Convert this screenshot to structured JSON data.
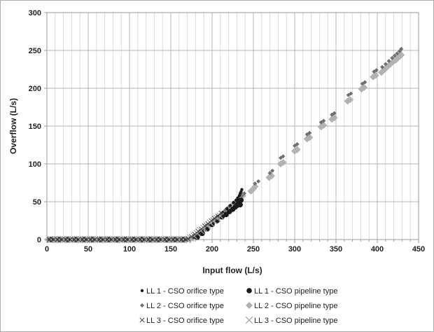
{
  "chart_data": {
    "type": "scatter",
    "title": "",
    "xlabel": "Input flow (L/s)",
    "ylabel": "Overflow (L/s)",
    "xlim": [
      0,
      450
    ],
    "ylim": [
      0,
      300
    ],
    "x_major_step": 50,
    "x_minor_step": 10,
    "y_major_step": 50,
    "x_ticks": [
      0,
      50,
      100,
      150,
      200,
      250,
      300,
      350,
      400,
      450
    ],
    "y_ticks": [
      0,
      50,
      100,
      150,
      200,
      250,
      300
    ],
    "grid": "on",
    "legend_position": "bottom-two-columns",
    "colors": {
      "black_marker": "#1a1a1a",
      "dark_gray_diamond": "#6f6f6f",
      "light_gray_diamond": "#b2b2b2",
      "dark_x": "#3c3c3c",
      "light_x": "#a3a3a3",
      "major_grid": "#b4b4b4",
      "minor_grid": "#dcdcdc",
      "axis_line": "#9a9a9a",
      "text": "#1f1f1f"
    },
    "series": [
      {
        "key": "ll2_pipeline",
        "label": "LL 2 - CSO pipeline type",
        "marker": "diamond",
        "size": 5,
        "color": "#b2b2b2",
        "stroke_width": 0,
        "zeros_x": [
          1,
          4,
          7,
          10,
          13,
          16,
          19,
          22,
          25,
          28,
          31,
          34,
          37,
          40,
          43,
          46,
          49,
          52,
          55,
          58,
          61,
          64,
          67,
          70,
          73,
          76,
          79,
          82,
          85,
          88,
          91,
          94,
          97,
          100,
          103,
          106,
          109,
          112,
          115,
          118,
          121,
          124,
          127,
          130,
          133,
          136,
          139,
          142,
          145,
          148,
          151,
          154,
          157,
          160,
          163,
          166,
          169
        ],
        "points": [
          [
            174,
            1
          ],
          [
            178,
            3
          ],
          [
            182,
            6
          ],
          [
            186,
            9
          ],
          [
            190,
            13
          ],
          [
            194,
            16
          ],
          [
            198,
            20
          ],
          [
            202,
            24
          ],
          [
            206,
            28
          ],
          [
            210,
            31
          ],
          [
            214,
            35
          ],
          [
            218,
            39
          ],
          [
            222,
            43
          ],
          [
            226,
            47
          ],
          [
            230,
            51
          ],
          [
            234,
            55
          ],
          [
            237,
            58
          ],
          [
            247,
            64
          ],
          [
            250,
            67
          ],
          [
            252,
            70
          ],
          [
            269,
            82
          ],
          [
            272,
            84
          ],
          [
            283,
            100
          ],
          [
            286,
            102
          ],
          [
            300,
            117
          ],
          [
            303,
            119
          ],
          [
            315,
            133
          ],
          [
            318,
            135
          ],
          [
            332,
            149
          ],
          [
            335,
            151
          ],
          [
            345,
            159
          ],
          [
            348,
            161
          ],
          [
            364,
            183
          ],
          [
            367,
            185
          ],
          [
            381,
            199
          ],
          [
            384,
            201
          ],
          [
            395,
            215
          ],
          [
            398,
            217
          ],
          [
            405,
            221
          ],
          [
            409,
            225
          ],
          [
            413,
            229
          ],
          [
            416,
            232
          ],
          [
            419,
            235
          ],
          [
            422,
            237
          ],
          [
            425,
            240
          ],
          [
            427,
            242
          ],
          [
            429,
            244
          ]
        ]
      },
      {
        "key": "ll2_orifice",
        "label": "LL 2 - CSO orifice type",
        "marker": "diamond",
        "size": 3,
        "color": "#6f6f6f",
        "stroke_width": 0,
        "zeros_x": [
          2,
          6,
          10,
          14,
          18,
          22,
          26,
          30,
          34,
          38,
          42,
          46,
          50,
          54,
          58,
          62,
          66,
          70,
          74,
          78,
          82,
          86,
          90,
          94,
          98,
          102,
          106,
          110,
          114,
          118,
          122,
          126,
          130,
          134,
          138,
          142,
          146,
          150,
          154,
          158,
          162,
          166,
          170
        ],
        "points": [
          [
            176,
            2
          ],
          [
            181,
            6
          ],
          [
            186,
            11
          ],
          [
            191,
            15
          ],
          [
            196,
            20
          ],
          [
            201,
            25
          ],
          [
            206,
            30
          ],
          [
            211,
            34
          ],
          [
            216,
            39
          ],
          [
            221,
            44
          ],
          [
            226,
            48
          ],
          [
            231,
            53
          ],
          [
            236,
            58
          ],
          [
            239,
            61
          ],
          [
            252,
            74
          ],
          [
            256,
            77
          ],
          [
            270,
            88
          ],
          [
            273,
            91
          ],
          [
            283,
            108
          ],
          [
            286,
            110
          ],
          [
            300,
            124
          ],
          [
            303,
            126
          ],
          [
            315,
            139
          ],
          [
            318,
            141
          ],
          [
            332,
            155
          ],
          [
            335,
            157
          ],
          [
            345,
            165
          ],
          [
            348,
            167
          ],
          [
            365,
            191
          ],
          [
            368,
            193
          ],
          [
            382,
            206
          ],
          [
            385,
            208
          ],
          [
            396,
            222
          ],
          [
            399,
            224
          ],
          [
            406,
            228
          ],
          [
            410,
            232
          ],
          [
            414,
            236
          ],
          [
            418,
            240
          ],
          [
            421,
            243
          ],
          [
            424,
            246
          ],
          [
            427,
            249
          ],
          [
            429,
            252
          ]
        ]
      },
      {
        "key": "ll1_pipeline",
        "label": "LL 1 - CSO pipeline type",
        "marker": "circle",
        "size": 3.8,
        "color": "#1a1a1a",
        "stroke_width": 0,
        "zeros_x": [
          5,
          15,
          25,
          35,
          45,
          55,
          65,
          75,
          85,
          95,
          105,
          115,
          125,
          135,
          145,
          155,
          165
        ],
        "points": [
          [
            182,
            3
          ],
          [
            188,
            8
          ],
          [
            194,
            14
          ],
          [
            200,
            20
          ],
          [
            206,
            25
          ],
          [
            212,
            30
          ],
          [
            217,
            33
          ],
          [
            221,
            37
          ],
          [
            225,
            40
          ],
          [
            228,
            43
          ],
          [
            230,
            45
          ],
          [
            231,
            47
          ],
          [
            232,
            49
          ],
          [
            233,
            51
          ],
          [
            234,
            46
          ],
          [
            235,
            52
          ]
        ]
      },
      {
        "key": "ll1_orifice",
        "label": "LL 1 - CSO orifice type",
        "marker": "circle",
        "size": 2.2,
        "color": "#1a1a1a",
        "stroke_width": 0,
        "zeros_x": [
          8,
          18,
          28,
          38,
          48,
          58,
          68,
          78,
          88,
          98,
          108,
          118,
          128,
          138,
          148,
          158,
          168
        ],
        "points": [
          [
            178,
            3
          ],
          [
            183,
            8
          ],
          [
            188,
            13
          ],
          [
            193,
            17
          ],
          [
            198,
            21
          ],
          [
            203,
            26
          ],
          [
            208,
            31
          ],
          [
            213,
            36
          ],
          [
            218,
            41
          ],
          [
            222,
            45
          ],
          [
            226,
            49
          ],
          [
            229,
            52
          ],
          [
            231,
            55
          ],
          [
            233,
            58
          ],
          [
            234,
            61
          ],
          [
            235,
            63
          ],
          [
            236,
            66
          ]
        ]
      },
      {
        "key": "ll3_pipeline",
        "label": "LL 3 - CSO pipeline type",
        "marker": "x",
        "size": 4.8,
        "color": "#a3a3a3",
        "stroke_width": 1.2,
        "zeros_x": [
          5,
          10,
          15,
          20,
          25,
          30,
          35,
          40,
          45,
          50,
          55,
          60,
          65,
          70,
          75,
          80,
          85,
          90,
          95,
          100,
          105,
          110,
          115,
          120,
          125,
          130,
          135,
          140,
          145,
          150,
          155,
          160,
          165,
          170
        ],
        "points": [
          [
            170,
            0
          ],
          [
            174,
            2
          ],
          [
            178,
            5
          ],
          [
            182,
            8
          ],
          [
            186,
            12
          ],
          [
            190,
            15
          ],
          [
            194,
            18
          ],
          [
            198,
            22
          ],
          [
            202,
            25
          ],
          [
            206,
            28
          ],
          [
            210,
            31
          ]
        ]
      },
      {
        "key": "ll3_orifice",
        "label": "LL 3 - CSO orifice type",
        "marker": "x",
        "size": 3.2,
        "color": "#3c3c3c",
        "stroke_width": 1,
        "zeros_x": [
          3,
          8,
          13,
          18,
          23,
          28,
          33,
          38,
          43,
          48,
          53,
          58,
          63,
          68,
          73,
          78,
          83,
          88,
          93,
          98,
          103,
          108,
          113,
          118,
          123,
          128,
          133,
          138,
          143,
          148,
          153,
          158,
          163,
          168
        ],
        "points": [
          [
            171,
            1
          ],
          [
            175,
            4
          ],
          [
            179,
            7
          ],
          [
            183,
            11
          ],
          [
            187,
            14
          ],
          [
            191,
            18
          ],
          [
            195,
            21
          ],
          [
            199,
            25
          ],
          [
            203,
            28
          ],
          [
            207,
            31
          ],
          [
            211,
            35
          ]
        ]
      }
    ],
    "legend_rows": [
      [
        "ll1_orifice",
        "ll1_pipeline"
      ],
      [
        "ll2_orifice",
        "ll2_pipeline"
      ],
      [
        "ll3_orifice",
        "ll3_pipeline"
      ]
    ]
  }
}
